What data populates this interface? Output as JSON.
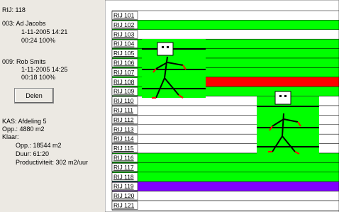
{
  "panel": {
    "rij": "RIJ: 118",
    "workers": [
      {
        "header": "003: Ad Jacobs",
        "time": "1-11-2005 14:21",
        "duration": "00:24 100%"
      },
      {
        "header": "009: Rob Smits",
        "time": "1-11-2005 14:25",
        "duration": "00:18 100%"
      }
    ],
    "button": "Delen",
    "kas": "KAS: Afdeling 5",
    "kas_opp": "Opp.: 4880 m2",
    "klaar": "Klaar:",
    "klaar_opp": "Opp.: 18544 m2",
    "duur": "Duur: 61:20",
    "productiviteit": "Productiviteit: 302 m2/uur"
  },
  "rows": [
    {
      "label": "RIJ 101",
      "color": "#ffffff"
    },
    {
      "label": "RIJ 102",
      "color": "#00ff00"
    },
    {
      "label": "RIJ 103",
      "color": "#ffffff"
    },
    {
      "label": "RIJ 104",
      "color": "#00ff00"
    },
    {
      "label": "RIJ 105",
      "color": "#00ff00"
    },
    {
      "label": "RIJ 106",
      "color": "#00ff00"
    },
    {
      "label": "RIJ 107",
      "color": "#00ff00"
    },
    {
      "label": "RIJ 108",
      "color": "#ff0000"
    },
    {
      "label": "RIJ 109",
      "color": "#00ff00"
    },
    {
      "label": "RIJ 110",
      "color": "#ffffff"
    },
    {
      "label": "RIJ 111",
      "color": "#ffffff"
    },
    {
      "label": "RIJ 112",
      "color": "#ffffff"
    },
    {
      "label": "RIJ 113",
      "color": "#ffffff"
    },
    {
      "label": "RIJ 114",
      "color": "#ffffff"
    },
    {
      "label": "RIJ 115",
      "color": "#ffffff"
    },
    {
      "label": "RIJ 116",
      "color": "#00ff00"
    },
    {
      "label": "RIJ 117",
      "color": "#00ff00"
    },
    {
      "label": "RIJ 118",
      "color": "#00ff00"
    },
    {
      "label": "RIJ 119",
      "color": "#8000ff"
    },
    {
      "label": "RIJ 120",
      "color": "#ffffff"
    },
    {
      "label": "RIJ 121",
      "color": "#ffffff"
    }
  ]
}
